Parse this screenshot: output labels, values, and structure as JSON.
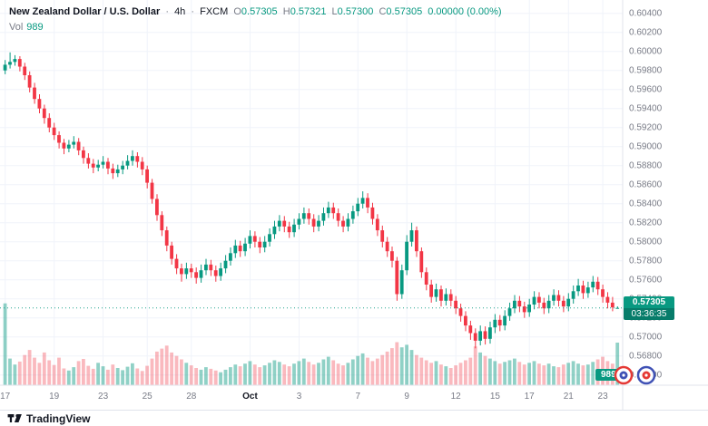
{
  "header": {
    "symbol_title": "New Zealand Dollar / U.S. Dollar",
    "separator": "·",
    "interval": "4h",
    "exchange": "FXCM",
    "ohlc": [
      {
        "label": "O",
        "value": "0.57305"
      },
      {
        "label": "H",
        "value": "0.57321"
      },
      {
        "label": "L",
        "value": "0.57300"
      },
      {
        "label": "C",
        "value": "0.57305"
      }
    ],
    "change": "0.00000 (0.00%)",
    "vol_label": "Vol",
    "vol_value": "989"
  },
  "price_axis": {
    "labels": [
      "0.60400",
      "0.60200",
      "0.60000",
      "0.59800",
      "0.59600",
      "0.59400",
      "0.59200",
      "0.59000",
      "0.58800",
      "0.58600",
      "0.58400",
      "0.58200",
      "0.58000",
      "0.57800",
      "0.57600",
      "0.57400",
      "0.57200",
      "0.57000",
      "0.56800",
      "0.56600"
    ],
    "last_price": "0.57305",
    "countdown": "03:36:35",
    "volume_badge": "989"
  },
  "time_axis": {
    "labels": [
      {
        "text": "17",
        "idx": 0
      },
      {
        "text": "19",
        "idx": 10
      },
      {
        "text": "23",
        "idx": 20
      },
      {
        "text": "25",
        "idx": 29
      },
      {
        "text": "28",
        "idx": 38
      },
      {
        "text": "Oct",
        "idx": 50,
        "major": true
      },
      {
        "text": "3",
        "idx": 60
      },
      {
        "text": "7",
        "idx": 72
      },
      {
        "text": "9",
        "idx": 82
      },
      {
        "text": "12",
        "idx": 92
      },
      {
        "text": "15",
        "idx": 100
      },
      {
        "text": "17",
        "idx": 107
      },
      {
        "text": "21",
        "idx": 115
      },
      {
        "text": "23",
        "idx": 122
      }
    ]
  },
  "footer": {
    "brand": "TradingView"
  },
  "colors": {
    "up": "#089981",
    "down": "#f23645",
    "vol_up": "rgba(8,153,129,0.45)",
    "vol_down": "rgba(242,54,69,0.35)",
    "grid": "#f0f3fa",
    "axis_text": "#787b86",
    "title_text": "#131722",
    "axis_border": "#e0e3eb",
    "badge_price_bg": "#089981",
    "badge_countdown_bg": "#077c6a"
  },
  "chart_data": {
    "type": "candlestick+volume",
    "title": "New Zealand Dollar / U.S. Dollar",
    "interval": "4h",
    "exchange": "FXCM",
    "current_price": 0.57305,
    "last_candle": {
      "open": 0.57305,
      "high": 0.57321,
      "low": 0.573,
      "close": 0.57305
    },
    "last_volume": 989,
    "price_axis_range": [
      0.566,
      0.604
    ],
    "price_axis_step": 0.002,
    "volume_scale_max": 2000,
    "candles": [
      [
        0.598,
        0.5991,
        0.5976,
        0.5986
      ],
      [
        0.5986,
        0.5999,
        0.5982,
        0.5989
      ],
      [
        0.5989,
        0.5996,
        0.5985,
        0.5992
      ],
      [
        0.5992,
        0.5995,
        0.5979,
        0.5984
      ],
      [
        0.5984,
        0.5988,
        0.597,
        0.5975
      ],
      [
        0.5975,
        0.5979,
        0.5957,
        0.5962
      ],
      [
        0.5962,
        0.5967,
        0.5945,
        0.595
      ],
      [
        0.595,
        0.5955,
        0.5935,
        0.594
      ],
      [
        0.594,
        0.5944,
        0.5924,
        0.593
      ],
      [
        0.593,
        0.5935,
        0.5915,
        0.592
      ],
      [
        0.592,
        0.5925,
        0.5907,
        0.5912
      ],
      [
        0.5912,
        0.5916,
        0.5898,
        0.5904
      ],
      [
        0.5904,
        0.5908,
        0.5892,
        0.5898
      ],
      [
        0.5898,
        0.5907,
        0.5894,
        0.5902
      ],
      [
        0.5902,
        0.5911,
        0.5898,
        0.5905
      ],
      [
        0.5905,
        0.5909,
        0.5891,
        0.5896
      ],
      [
        0.5896,
        0.59,
        0.5882,
        0.5888
      ],
      [
        0.5888,
        0.5893,
        0.5877,
        0.5882
      ],
      [
        0.5882,
        0.5887,
        0.5872,
        0.5878
      ],
      [
        0.5878,
        0.5886,
        0.5874,
        0.5881
      ],
      [
        0.5881,
        0.589,
        0.5877,
        0.5884
      ],
      [
        0.5884,
        0.5888,
        0.5871,
        0.5877
      ],
      [
        0.5877,
        0.5882,
        0.5866,
        0.5872
      ],
      [
        0.5872,
        0.5881,
        0.5868,
        0.5876
      ],
      [
        0.5876,
        0.5885,
        0.5871,
        0.588
      ],
      [
        0.588,
        0.5891,
        0.5876,
        0.5885
      ],
      [
        0.5885,
        0.5896,
        0.588,
        0.589
      ],
      [
        0.589,
        0.5894,
        0.5878,
        0.5884
      ],
      [
        0.5884,
        0.5889,
        0.587,
        0.5876
      ],
      [
        0.5876,
        0.588,
        0.5856,
        0.5862
      ],
      [
        0.5862,
        0.5866,
        0.584,
        0.5845
      ],
      [
        0.5845,
        0.585,
        0.5822,
        0.5828
      ],
      [
        0.5828,
        0.5832,
        0.5806,
        0.5812
      ],
      [
        0.5812,
        0.5816,
        0.579,
        0.5796
      ],
      [
        0.5796,
        0.58,
        0.5776,
        0.5782
      ],
      [
        0.5782,
        0.5787,
        0.5766,
        0.5772
      ],
      [
        0.5772,
        0.5777,
        0.5758,
        0.5766
      ],
      [
        0.5766,
        0.5778,
        0.5761,
        0.5772
      ],
      [
        0.5772,
        0.5777,
        0.5762,
        0.5768
      ],
      [
        0.5768,
        0.5773,
        0.5756,
        0.5762
      ],
      [
        0.5762,
        0.5776,
        0.5757,
        0.577
      ],
      [
        0.577,
        0.5782,
        0.5765,
        0.5776
      ],
      [
        0.5776,
        0.5781,
        0.5764,
        0.577
      ],
      [
        0.577,
        0.5775,
        0.5758,
        0.5764
      ],
      [
        0.5764,
        0.5778,
        0.5759,
        0.5772
      ],
      [
        0.5772,
        0.5786,
        0.5767,
        0.578
      ],
      [
        0.578,
        0.5794,
        0.5775,
        0.5788
      ],
      [
        0.5788,
        0.5802,
        0.5783,
        0.5796
      ],
      [
        0.5796,
        0.5801,
        0.5784,
        0.579
      ],
      [
        0.579,
        0.5804,
        0.5785,
        0.5798
      ],
      [
        0.5798,
        0.5812,
        0.5793,
        0.5806
      ],
      [
        0.5806,
        0.5811,
        0.5794,
        0.58
      ],
      [
        0.58,
        0.5805,
        0.5788,
        0.5794
      ],
      [
        0.5794,
        0.5806,
        0.5789,
        0.58
      ],
      [
        0.58,
        0.5814,
        0.5795,
        0.5808
      ],
      [
        0.5808,
        0.5822,
        0.5803,
        0.5816
      ],
      [
        0.5816,
        0.5828,
        0.5811,
        0.5822
      ],
      [
        0.5822,
        0.5827,
        0.581,
        0.5816
      ],
      [
        0.5816,
        0.5821,
        0.5804,
        0.581
      ],
      [
        0.581,
        0.5824,
        0.5805,
        0.5818
      ],
      [
        0.5818,
        0.583,
        0.5813,
        0.5824
      ],
      [
        0.5824,
        0.5836,
        0.5819,
        0.583
      ],
      [
        0.583,
        0.5835,
        0.5818,
        0.5824
      ],
      [
        0.5824,
        0.5829,
        0.581,
        0.5816
      ],
      [
        0.5816,
        0.5828,
        0.5811,
        0.5822
      ],
      [
        0.5822,
        0.5836,
        0.5817,
        0.583
      ],
      [
        0.583,
        0.5842,
        0.5825,
        0.5836
      ],
      [
        0.5836,
        0.5841,
        0.5824,
        0.583
      ],
      [
        0.583,
        0.5835,
        0.5816,
        0.5822
      ],
      [
        0.5822,
        0.5827,
        0.581,
        0.5816
      ],
      [
        0.5816,
        0.583,
        0.5811,
        0.5824
      ],
      [
        0.5824,
        0.5838,
        0.5819,
        0.5832
      ],
      [
        0.5832,
        0.5846,
        0.5827,
        0.584
      ],
      [
        0.584,
        0.5853,
        0.5835,
        0.5846
      ],
      [
        0.5846,
        0.5851,
        0.583,
        0.5836
      ],
      [
        0.5836,
        0.5841,
        0.5818,
        0.5824
      ],
      [
        0.5824,
        0.5829,
        0.5806,
        0.5812
      ],
      [
        0.5812,
        0.5817,
        0.5794,
        0.58
      ],
      [
        0.58,
        0.5805,
        0.5784,
        0.579
      ],
      [
        0.579,
        0.5795,
        0.5773,
        0.578
      ],
      [
        0.578,
        0.5784,
        0.5738,
        0.5745
      ],
      [
        0.5745,
        0.5776,
        0.574,
        0.577
      ],
      [
        0.577,
        0.5807,
        0.5765,
        0.58
      ],
      [
        0.58,
        0.582,
        0.5795,
        0.5812
      ],
      [
        0.5812,
        0.5816,
        0.5784,
        0.579
      ],
      [
        0.579,
        0.5794,
        0.5762,
        0.5768
      ],
      [
        0.5768,
        0.5773,
        0.5749,
        0.5755
      ],
      [
        0.5755,
        0.576,
        0.5736,
        0.5742
      ],
      [
        0.5742,
        0.5756,
        0.5737,
        0.575
      ],
      [
        0.575,
        0.5754,
        0.5732,
        0.5738
      ],
      [
        0.5738,
        0.5751,
        0.5733,
        0.5745
      ],
      [
        0.5745,
        0.575,
        0.5732,
        0.5738
      ],
      [
        0.5738,
        0.5743,
        0.5724,
        0.573
      ],
      [
        0.573,
        0.5735,
        0.5716,
        0.5722
      ],
      [
        0.5722,
        0.5727,
        0.5706,
        0.5712
      ],
      [
        0.5712,
        0.5717,
        0.5697,
        0.5704
      ],
      [
        0.5704,
        0.5709,
        0.5688,
        0.5696
      ],
      [
        0.5696,
        0.5712,
        0.5691,
        0.5706
      ],
      [
        0.5706,
        0.5711,
        0.5692,
        0.5698
      ],
      [
        0.5698,
        0.5716,
        0.5693,
        0.571
      ],
      [
        0.571,
        0.5724,
        0.5704,
        0.5718
      ],
      [
        0.5718,
        0.5723,
        0.5706,
        0.5712
      ],
      [
        0.5712,
        0.5728,
        0.5707,
        0.5722
      ],
      [
        0.5722,
        0.5736,
        0.5717,
        0.573
      ],
      [
        0.573,
        0.5744,
        0.5725,
        0.5738
      ],
      [
        0.5738,
        0.5743,
        0.5726,
        0.5732
      ],
      [
        0.5732,
        0.5737,
        0.572,
        0.5726
      ],
      [
        0.5726,
        0.574,
        0.5721,
        0.5734
      ],
      [
        0.5734,
        0.5748,
        0.5729,
        0.5742
      ],
      [
        0.5742,
        0.5747,
        0.573,
        0.5736
      ],
      [
        0.5736,
        0.5741,
        0.5724,
        0.573
      ],
      [
        0.573,
        0.5744,
        0.5725,
        0.5738
      ],
      [
        0.5738,
        0.575,
        0.5733,
        0.5744
      ],
      [
        0.5744,
        0.5749,
        0.5732,
        0.5738
      ],
      [
        0.5738,
        0.5743,
        0.5726,
        0.5732
      ],
      [
        0.5732,
        0.5746,
        0.5727,
        0.574
      ],
      [
        0.574,
        0.5754,
        0.5735,
        0.5748
      ],
      [
        0.5748,
        0.5761,
        0.5743,
        0.5754
      ],
      [
        0.5754,
        0.5759,
        0.574,
        0.5746
      ],
      [
        0.5746,
        0.5758,
        0.5741,
        0.5752
      ],
      [
        0.5752,
        0.5764,
        0.5747,
        0.5758
      ],
      [
        0.5758,
        0.5763,
        0.5744,
        0.575
      ],
      [
        0.575,
        0.5755,
        0.5736,
        0.5742
      ],
      [
        0.5742,
        0.5747,
        0.573,
        0.5736
      ],
      [
        0.5736,
        0.5742,
        0.5727,
        0.5731
      ],
      [
        0.57305,
        0.57321,
        0.573,
        0.57305
      ]
    ],
    "volumes": [
      1900,
      620,
      480,
      550,
      700,
      820,
      640,
      520,
      760,
      580,
      470,
      640,
      390,
      340,
      420,
      560,
      610,
      450,
      380,
      520,
      440,
      360,
      480,
      400,
      350,
      430,
      510,
      390,
      330,
      450,
      620,
      780,
      850,
      920,
      760,
      680,
      600,
      520,
      460,
      400,
      360,
      420,
      380,
      340,
      300,
      360,
      420,
      480,
      440,
      500,
      560,
      480,
      420,
      460,
      520,
      580,
      540,
      480,
      440,
      500,
      560,
      620,
      540,
      480,
      520,
      600,
      660,
      580,
      500,
      460,
      520,
      600,
      680,
      740,
      640,
      560,
      620,
      700,
      780,
      860,
      1000,
      880,
      940,
      820,
      700,
      640,
      580,
      520,
      560,
      480,
      440,
      400,
      460,
      520,
      580,
      640,
      900,
      760,
      680,
      620,
      560,
      500,
      540,
      580,
      620,
      540,
      480,
      520,
      560,
      500,
      460,
      500,
      440,
      420,
      480,
      520,
      560,
      500,
      460,
      480,
      540,
      600,
      660,
      560,
      500,
      989
    ]
  }
}
